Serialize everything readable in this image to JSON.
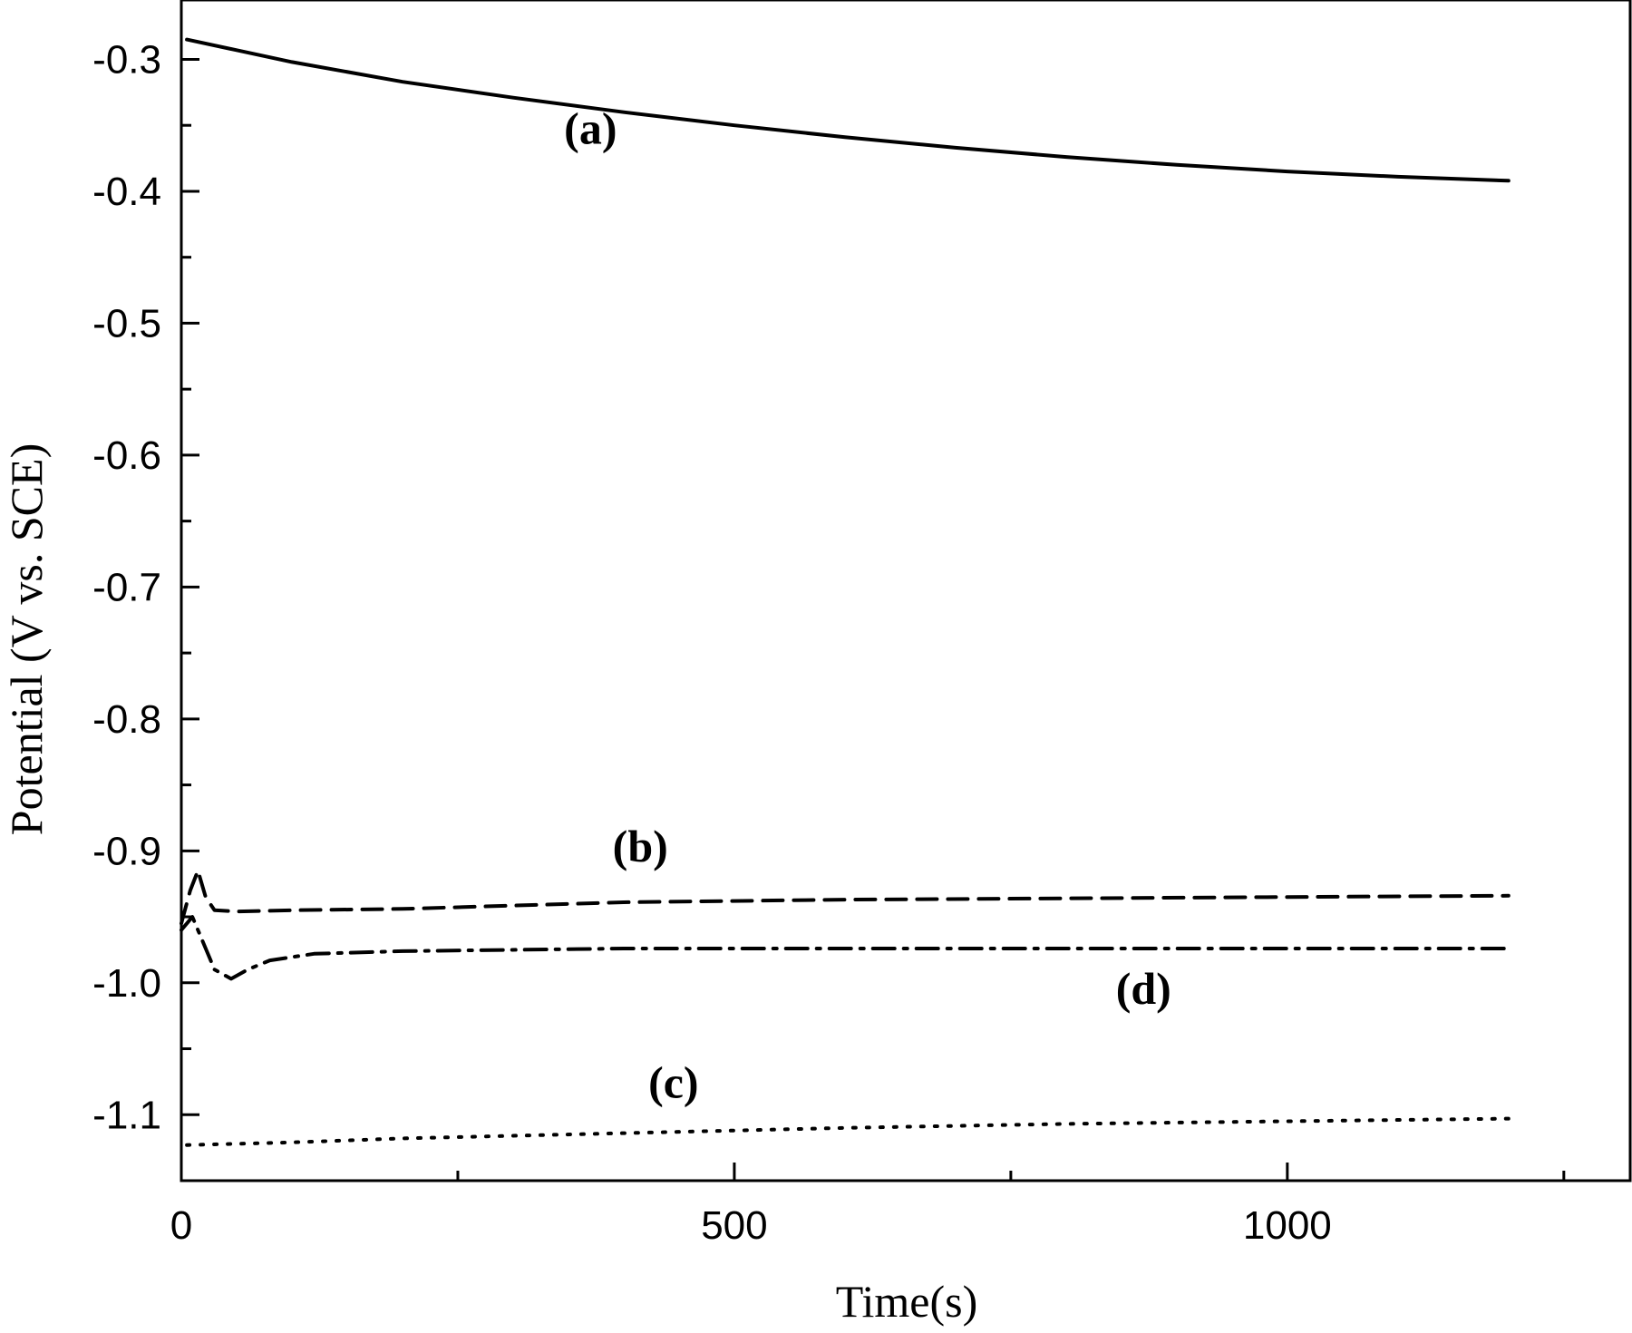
{
  "chart_data": {
    "type": "line",
    "title": "",
    "xlabel": "Time(s)",
    "ylabel": "Potential (V vs. SCE)",
    "xlim": [
      0,
      1310
    ],
    "ylim": [
      -1.15,
      -0.255
    ],
    "xticks": [
      0,
      500,
      1000
    ],
    "xtick_labels": [
      "0",
      "500",
      "1000"
    ],
    "yticks": [
      -0.3,
      -0.4,
      -0.5,
      -0.6,
      -0.7,
      -0.8,
      -0.9,
      -1.0,
      -1.1
    ],
    "ytick_labels": [
      "-0.3",
      "-0.4",
      "-0.5",
      "-0.6",
      "-0.7",
      "-0.8",
      "-0.9",
      "-1.0",
      "-1.1"
    ],
    "grid": false,
    "legend": "none",
    "series": [
      {
        "name": "(a)",
        "style": "solid",
        "color": "#000000",
        "x": [
          5,
          50,
          100,
          200,
          300,
          400,
          500,
          600,
          700,
          800,
          900,
          1000,
          1100,
          1200
        ],
        "y": [
          -0.285,
          -0.293,
          -0.302,
          -0.317,
          -0.329,
          -0.34,
          -0.35,
          -0.359,
          -0.367,
          -0.374,
          -0.38,
          -0.385,
          -0.389,
          -0.392
        ]
      },
      {
        "name": "(b)",
        "style": "dash",
        "color": "#000000",
        "x": [
          0,
          8,
          15,
          22,
          30,
          50,
          100,
          200,
          400,
          600,
          800,
          1000,
          1200
        ],
        "y": [
          -0.955,
          -0.93,
          -0.915,
          -0.935,
          -0.945,
          -0.946,
          -0.945,
          -0.944,
          -0.939,
          -0.937,
          -0.936,
          -0.935,
          -0.934
        ]
      },
      {
        "name": "(c)",
        "style": "dot",
        "color": "#000000",
        "x": [
          5,
          100,
          200,
          400,
          600,
          800,
          1000,
          1200
        ],
        "y": [
          -1.123,
          -1.121,
          -1.118,
          -1.114,
          -1.11,
          -1.107,
          -1.105,
          -1.103
        ]
      },
      {
        "name": "(d)",
        "style": "dashdot",
        "color": "#000000",
        "x": [
          0,
          10,
          20,
          30,
          45,
          60,
          80,
          120,
          200,
          400,
          600,
          800,
          1000,
          1200
        ],
        "y": [
          -0.96,
          -0.95,
          -0.97,
          -0.99,
          -0.997,
          -0.99,
          -0.983,
          -0.978,
          -0.976,
          -0.974,
          -0.974,
          -0.974,
          -0.974,
          -0.974
        ]
      }
    ],
    "annotations": [
      {
        "text": "(a)",
        "x": 370,
        "y": -0.364
      },
      {
        "text": "(b)",
        "x": 415,
        "y": -0.908
      },
      {
        "text": "(d)",
        "x": 870,
        "y": -1.016
      },
      {
        "text": "(c)",
        "x": 445,
        "y": -1.087
      }
    ]
  }
}
